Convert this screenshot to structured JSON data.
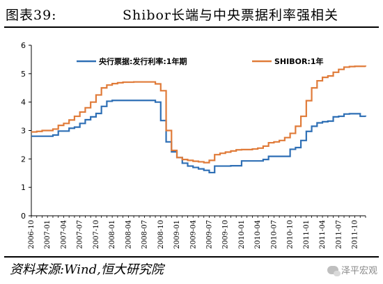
{
  "figure": {
    "number": "图表39:",
    "title": "Shibor长端与中央票据利率强相关",
    "source": "资料来源:Wind,恒大研究院",
    "watermark": "泽平宏观"
  },
  "chart_data": {
    "type": "line",
    "title": "",
    "xlabel": "",
    "ylabel": "",
    "ylim": [
      0,
      6
    ],
    "yticks": [
      0,
      1,
      2,
      3,
      4,
      5,
      6
    ],
    "xlim": [
      "2006-10",
      "2011-12"
    ],
    "x_tick_labels": [
      "2006-10",
      "2007-01",
      "2007-04",
      "2007-07",
      "2007-10",
      "2008-01",
      "2008-04",
      "2008-07",
      "2008-10",
      "2009-01",
      "2009-04",
      "2009-07",
      "2009-10",
      "2010-01",
      "2010-04",
      "2010-07",
      "2010-10",
      "2011-01",
      "2011-04",
      "2011-07",
      "2011-10"
    ],
    "legend_position": "top",
    "grid": false,
    "series": [
      {
        "name": "央行票据:发行利率:1年期",
        "color": "#2e6fb5",
        "points": [
          [
            "2006-10",
            2.8
          ],
          [
            "2006-11",
            2.8
          ],
          [
            "2006-12",
            2.8
          ],
          [
            "2007-01",
            2.8
          ],
          [
            "2007-02",
            2.84
          ],
          [
            "2007-03",
            2.98
          ],
          [
            "2007-04",
            2.98
          ],
          [
            "2007-05",
            3.08
          ],
          [
            "2007-06",
            3.12
          ],
          [
            "2007-07",
            3.25
          ],
          [
            "2007-08",
            3.38
          ],
          [
            "2007-09",
            3.48
          ],
          [
            "2007-10",
            3.6
          ],
          [
            "2007-11",
            3.85
          ],
          [
            "2007-12",
            4.03
          ],
          [
            "2008-01",
            4.06
          ],
          [
            "2008-02",
            4.06
          ],
          [
            "2008-03",
            4.06
          ],
          [
            "2008-04",
            4.06
          ],
          [
            "2008-05",
            4.06
          ],
          [
            "2008-06",
            4.06
          ],
          [
            "2008-07",
            4.06
          ],
          [
            "2008-08",
            4.06
          ],
          [
            "2008-09",
            4.0
          ],
          [
            "2008-10",
            3.35
          ],
          [
            "2008-11",
            2.6
          ],
          [
            "2008-12",
            2.25
          ],
          [
            "2009-01",
            2.05
          ],
          [
            "2009-02",
            1.85
          ],
          [
            "2009-03",
            1.75
          ],
          [
            "2009-04",
            1.7
          ],
          [
            "2009-05",
            1.65
          ],
          [
            "2009-06",
            1.6
          ],
          [
            "2009-07",
            1.52
          ],
          [
            "2009-08",
            1.75
          ],
          [
            "2009-09",
            1.75
          ],
          [
            "2009-10",
            1.75
          ],
          [
            "2009-11",
            1.76
          ],
          [
            "2009-12",
            1.76
          ],
          [
            "2010-01",
            1.93
          ],
          [
            "2010-02",
            1.93
          ],
          [
            "2010-03",
            1.93
          ],
          [
            "2010-04",
            1.93
          ],
          [
            "2010-05",
            1.98
          ],
          [
            "2010-06",
            2.09
          ],
          [
            "2010-07",
            2.09
          ],
          [
            "2010-08",
            2.09
          ],
          [
            "2010-09",
            2.09
          ],
          [
            "2010-10",
            2.34
          ],
          [
            "2010-11",
            2.4
          ],
          [
            "2010-12",
            2.65
          ],
          [
            "2011-01",
            2.97
          ],
          [
            "2011-02",
            3.15
          ],
          [
            "2011-03",
            3.27
          ],
          [
            "2011-04",
            3.31
          ],
          [
            "2011-05",
            3.33
          ],
          [
            "2011-06",
            3.48
          ],
          [
            "2011-07",
            3.5
          ],
          [
            "2011-08",
            3.58
          ],
          [
            "2011-09",
            3.59
          ],
          [
            "2011-10",
            3.59
          ],
          [
            "2011-11",
            3.5
          ],
          [
            "2011-12",
            3.49
          ]
        ]
      },
      {
        "name": "SHIBOR:1年",
        "color": "#e07b39",
        "points": [
          [
            "2006-10",
            2.95
          ],
          [
            "2006-11",
            2.97
          ],
          [
            "2006-12",
            3.0
          ],
          [
            "2007-01",
            3.0
          ],
          [
            "2007-02",
            3.05
          ],
          [
            "2007-03",
            3.18
          ],
          [
            "2007-04",
            3.25
          ],
          [
            "2007-05",
            3.37
          ],
          [
            "2007-06",
            3.5
          ],
          [
            "2007-07",
            3.65
          ],
          [
            "2007-08",
            3.8
          ],
          [
            "2007-09",
            4.0
          ],
          [
            "2007-10",
            4.25
          ],
          [
            "2007-11",
            4.5
          ],
          [
            "2007-12",
            4.6
          ],
          [
            "2008-01",
            4.65
          ],
          [
            "2008-02",
            4.68
          ],
          [
            "2008-03",
            4.7
          ],
          [
            "2008-04",
            4.7
          ],
          [
            "2008-05",
            4.71
          ],
          [
            "2008-06",
            4.71
          ],
          [
            "2008-07",
            4.71
          ],
          [
            "2008-08",
            4.71
          ],
          [
            "2008-09",
            4.64
          ],
          [
            "2008-10",
            4.4
          ],
          [
            "2008-11",
            3.0
          ],
          [
            "2008-12",
            2.3
          ],
          [
            "2009-01",
            2.05
          ],
          [
            "2009-02",
            1.98
          ],
          [
            "2009-03",
            1.95
          ],
          [
            "2009-04",
            1.92
          ],
          [
            "2009-05",
            1.9
          ],
          [
            "2009-06",
            1.87
          ],
          [
            "2009-07",
            1.95
          ],
          [
            "2009-08",
            2.15
          ],
          [
            "2009-09",
            2.2
          ],
          [
            "2009-10",
            2.24
          ],
          [
            "2009-11",
            2.28
          ],
          [
            "2009-12",
            2.32
          ],
          [
            "2010-01",
            2.33
          ],
          [
            "2010-02",
            2.33
          ],
          [
            "2010-03",
            2.35
          ],
          [
            "2010-04",
            2.38
          ],
          [
            "2010-05",
            2.45
          ],
          [
            "2010-06",
            2.57
          ],
          [
            "2010-07",
            2.6
          ],
          [
            "2010-08",
            2.65
          ],
          [
            "2010-09",
            2.75
          ],
          [
            "2010-10",
            2.9
          ],
          [
            "2010-11",
            3.15
          ],
          [
            "2010-12",
            3.5
          ],
          [
            "2011-01",
            4.05
          ],
          [
            "2011-02",
            4.5
          ],
          [
            "2011-03",
            4.75
          ],
          [
            "2011-04",
            4.87
          ],
          [
            "2011-05",
            4.92
          ],
          [
            "2011-06",
            5.05
          ],
          [
            "2011-07",
            5.15
          ],
          [
            "2011-08",
            5.23
          ],
          [
            "2011-09",
            5.25
          ],
          [
            "2011-10",
            5.26
          ],
          [
            "2011-11",
            5.26
          ],
          [
            "2011-12",
            5.25
          ]
        ]
      }
    ]
  }
}
